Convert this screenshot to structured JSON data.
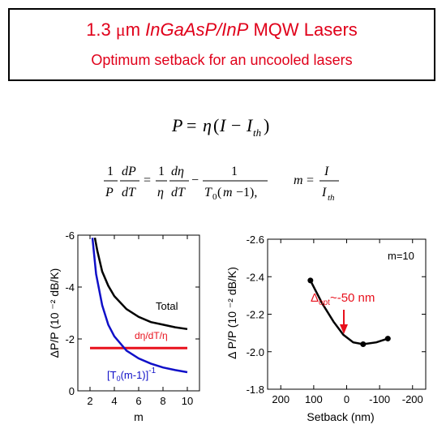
{
  "title": {
    "prefix": "1.3 ",
    "mu": "μ",
    "unit": "m ",
    "material": "InGaAsP/InP",
    "suffix": " MQW Lasers",
    "subtitle": "Optimum setback for an uncooled lasers"
  },
  "equations": {
    "eq1": "P = η(I − I_th)",
    "eq2": "(1/P)(dP/dT) = (1/η)(dη/dT) − 1/(T0(m−1)),   m = I/I_th"
  },
  "colors": {
    "title_red": "#e0001a",
    "total": "#000000",
    "deta": "#e8101c",
    "inv": "#1010c8",
    "arrow": "#e8101c"
  },
  "chart_data": [
    {
      "type": "line",
      "xlabel": "m",
      "ylabel": "ΔP/P (10 ⁻² dB/K)",
      "xlim": [
        1,
        11
      ],
      "ylim": [
        0,
        -6
      ],
      "xticks": [
        2,
        4,
        6,
        8,
        10
      ],
      "yticks": [
        0,
        -2,
        -4,
        -6
      ],
      "grid": false,
      "series": [
        {
          "name": "Total",
          "color": "#000000",
          "x": [
            2.4,
            2.6,
            3,
            3.5,
            4,
            5,
            6,
            7,
            8,
            9,
            10
          ],
          "y": [
            -5.9,
            -5.4,
            -4.6,
            -4.05,
            -3.65,
            -3.15,
            -2.85,
            -2.65,
            -2.55,
            -2.45,
            -2.38
          ]
        },
        {
          "name": "dη/dT/η",
          "color": "#e8101c",
          "x": [
            2,
            10
          ],
          "y": [
            -1.65,
            -1.65
          ]
        },
        {
          "name": "[T0(m-1)]-1",
          "color": "#1010c8",
          "x": [
            2.2,
            2.5,
            3,
            3.5,
            4,
            5,
            6,
            7,
            8,
            9,
            10
          ],
          "y": [
            -5.9,
            -4.5,
            -3.3,
            -2.55,
            -2.1,
            -1.55,
            -1.25,
            -1.05,
            -0.9,
            -0.8,
            -0.72
          ]
        }
      ],
      "labels": {
        "total": "Total",
        "deta": "dη/dT/η",
        "inv_bracket": "[T",
        "inv_sub": "0",
        "inv_mid": "(m-1)]",
        "inv_sup": "-1"
      }
    },
    {
      "type": "line",
      "xlabel": "Setback (nm)",
      "ylabel": "Δ P/P (10 ⁻² dB/K)",
      "xlim": [
        240,
        -240
      ],
      "ylim": [
        -1.8,
        -2.6
      ],
      "xticks": [
        200,
        100,
        0,
        -100,
        -200
      ],
      "yticks": [
        -1.8,
        -2.0,
        -2.2,
        -2.4,
        -2.6
      ],
      "grid": false,
      "series": [
        {
          "name": "",
          "color": "#000000",
          "x": [
            110,
            75,
            40,
            10,
            -20,
            -50,
            -90,
            -125
          ],
          "y": [
            -2.38,
            -2.26,
            -2.16,
            -2.09,
            -2.05,
            -2.04,
            -2.05,
            -2.07
          ]
        }
      ],
      "points": [
        {
          "x": 110,
          "y": -2.38
        },
        {
          "x": -50,
          "y": -2.04
        },
        {
          "x": -125,
          "y": -2.07
        }
      ],
      "annotations": {
        "m_label": "m=10",
        "delta": "Δ",
        "opt_sub": "opt",
        "opt_text": "~-50 nm"
      }
    }
  ]
}
